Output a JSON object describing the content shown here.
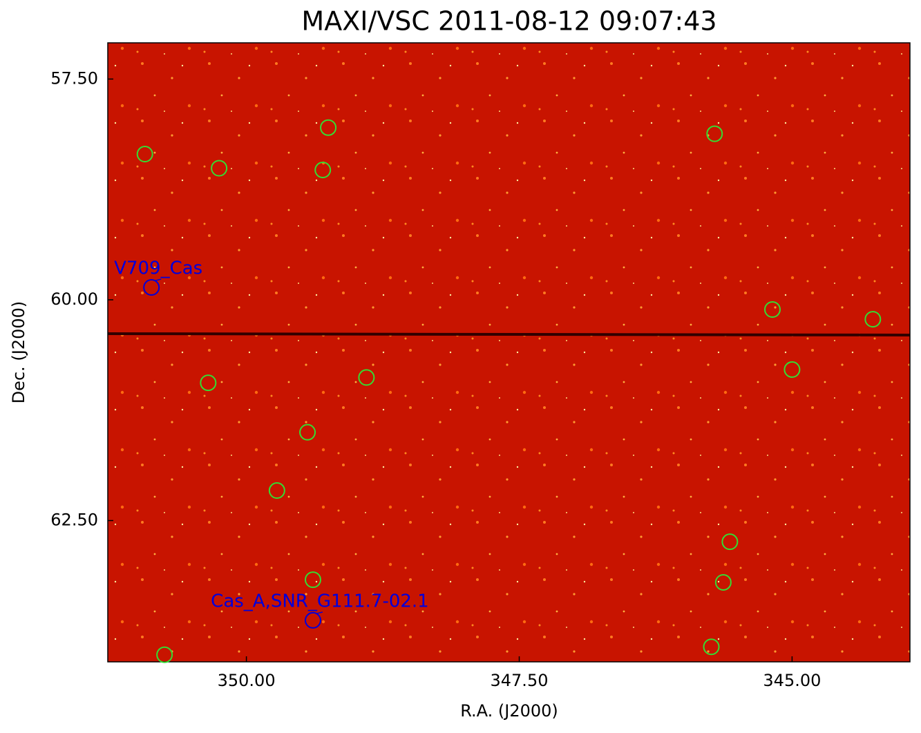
{
  "chart_data": {
    "type": "scatter",
    "title": "MAXI/VSC 2011-08-12 09:07:43",
    "x_label": "R.A. (J2000)",
    "y_label": "Dec. (J2000)",
    "xlim": [
      351.27,
      343.92
    ],
    "ylim": [
      57.09,
      64.1
    ],
    "xticks": [
      {
        "value": 350,
        "label": "350.00"
      },
      {
        "value": 347.5,
        "label": "347.50"
      },
      {
        "value": 345,
        "label": "345.00"
      }
    ],
    "yticks": [
      {
        "value": 57.5,
        "label": "57.50"
      },
      {
        "value": 60,
        "label": "60.00"
      },
      {
        "value": 62.5,
        "label": "62.50"
      }
    ],
    "background_color": "#c81400",
    "series": [
      {
        "color": "#33dd33",
        "x": [
          350.93,
          350.25,
          349.25,
          349.3,
          345.71,
          345.18,
          344.26,
          345.0,
          348.9,
          350.35,
          349.44,
          349.72,
          345.57,
          349.39,
          345.63,
          350.75,
          345.74
        ],
        "values": [
          58.35,
          58.51,
          58.05,
          58.53,
          58.12,
          60.11,
          60.22,
          60.79,
          60.88,
          60.94,
          61.5,
          62.16,
          62.74,
          63.17,
          63.2,
          64.02,
          63.93
        ]
      },
      {
        "color": "#0000dd",
        "x": [
          350.87,
          349.39
        ],
        "values": [
          59.86,
          63.63
        ],
        "labels": [
          "V709_Cas",
          "Cas_A,SNR_G111.7-02.1"
        ]
      }
    ]
  }
}
